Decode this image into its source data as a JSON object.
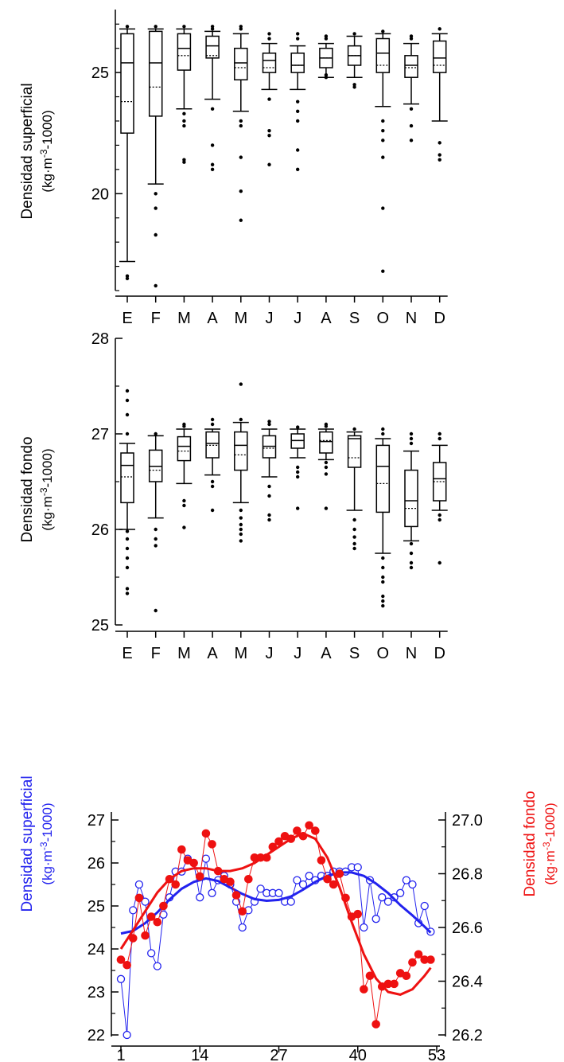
{
  "chart_data": [
    {
      "type": "box",
      "ylabel": "Densidad superficial",
      "ylabel_units": "(kg·m",
      "ylabel_units_sup": "-3",
      "ylabel_units_tail": "-1000)",
      "categories": [
        "E",
        "F",
        "M",
        "A",
        "M",
        "J",
        "J",
        "A",
        "S",
        "O",
        "N",
        "D"
      ],
      "yticks": [
        20,
        25
      ],
      "ylim": [
        16.0,
        27.6
      ],
      "boxes": [
        {
          "q1": 22.5,
          "median": 25.4,
          "q3": 26.6,
          "mean": 23.8,
          "wlo": 17.2,
          "whi": 26.8,
          "out": [
            16.5,
            16.6,
            26.9
          ]
        },
        {
          "q1": 23.2,
          "median": 25.4,
          "q3": 26.7,
          "mean": 24.4,
          "wlo": 20.4,
          "whi": 26.8,
          "out": [
            20.0,
            19.4,
            18.3,
            16.2,
            26.9
          ]
        },
        {
          "q1": 25.1,
          "median": 26.0,
          "q3": 26.6,
          "mean": 25.7,
          "wlo": 23.5,
          "whi": 26.8,
          "out": [
            23.3,
            23.0,
            22.8,
            21.4,
            21.3,
            26.9
          ]
        },
        {
          "q1": 25.6,
          "median": 26.1,
          "q3": 26.5,
          "mean": 25.7,
          "wlo": 23.9,
          "whi": 26.7,
          "out": [
            23.5,
            22.0,
            21.2,
            21.0,
            26.8,
            26.9
          ]
        },
        {
          "q1": 24.7,
          "median": 25.4,
          "q3": 26.0,
          "mean": 25.2,
          "wlo": 23.4,
          "whi": 26.6,
          "out": [
            23.0,
            22.8,
            21.5,
            20.1,
            18.9,
            26.8,
            26.9
          ]
        },
        {
          "q1": 25.0,
          "median": 25.5,
          "q3": 25.8,
          "mean": 25.2,
          "wlo": 24.3,
          "whi": 26.2,
          "out": [
            23.9,
            22.6,
            22.4,
            21.2,
            26.4,
            26.6
          ]
        },
        {
          "q1": 25.0,
          "median": 25.3,
          "q3": 25.8,
          "mean": 25.3,
          "wlo": 24.3,
          "whi": 26.1,
          "out": [
            23.8,
            23.4,
            23.0,
            21.8,
            21.0,
            26.4,
            26.6
          ]
        },
        {
          "q1": 25.2,
          "median": 25.6,
          "q3": 26.0,
          "mean": 25.6,
          "wlo": 24.8,
          "whi": 26.2,
          "out": [
            24.8,
            24.9,
            26.4,
            26.5
          ]
        },
        {
          "q1": 25.3,
          "median": 25.7,
          "q3": 26.1,
          "mean": 25.7,
          "wlo": 24.8,
          "whi": 26.5,
          "out": [
            24.5,
            24.4,
            26.6
          ]
        },
        {
          "q1": 25.0,
          "median": 25.8,
          "q3": 26.4,
          "mean": 25.3,
          "wlo": 23.6,
          "whi": 26.6,
          "out": [
            23.0,
            22.6,
            22.2,
            21.5,
            19.4,
            16.8,
            26.7
          ]
        },
        {
          "q1": 24.8,
          "median": 25.3,
          "q3": 25.7,
          "mean": 25.2,
          "wlo": 23.7,
          "whi": 26.2,
          "out": [
            23.5,
            22.8,
            22.2,
            26.4,
            26.5
          ]
        },
        {
          "q1": 25.0,
          "median": 25.6,
          "q3": 26.3,
          "mean": 25.3,
          "wlo": 23.0,
          "whi": 26.6,
          "out": [
            22.1,
            21.6,
            21.4,
            26.8
          ]
        }
      ]
    },
    {
      "type": "box",
      "ylabel": "Densidad fondo",
      "ylabel_units": "(kg·m",
      "ylabel_units_sup": "-3",
      "ylabel_units_tail": "-1000)",
      "categories": [
        "E",
        "F",
        "M",
        "A",
        "M",
        "J",
        "J",
        "A",
        "S",
        "O",
        "N",
        "D"
      ],
      "yticks": [
        25,
        26,
        27,
        28
      ],
      "ylim": [
        25,
        28
      ],
      "boxes": [
        {
          "q1": 26.28,
          "median": 26.67,
          "q3": 26.8,
          "mean": 26.55,
          "wlo": 26.0,
          "whi": 26.9,
          "out": [
            25.98,
            25.9,
            25.8,
            25.7,
            25.6,
            25.38,
            25.33,
            27.0,
            27.2,
            27.35,
            27.45
          ]
        },
        {
          "q1": 26.5,
          "median": 26.66,
          "q3": 26.83,
          "mean": 26.62,
          "wlo": 26.12,
          "whi": 26.98,
          "out": [
            26.0,
            25.9,
            25.83,
            25.15,
            27.0
          ]
        },
        {
          "q1": 26.72,
          "median": 26.87,
          "q3": 26.97,
          "mean": 26.82,
          "wlo": 26.48,
          "whi": 27.05,
          "out": [
            26.3,
            26.25,
            26.02,
            27.08,
            27.1
          ]
        },
        {
          "q1": 26.75,
          "median": 26.9,
          "q3": 27.02,
          "mean": 26.88,
          "wlo": 26.57,
          "whi": 27.05,
          "out": [
            26.5,
            26.45,
            26.2,
            27.1,
            27.15
          ]
        },
        {
          "q1": 26.62,
          "median": 26.88,
          "q3": 27.02,
          "mean": 26.78,
          "wlo": 26.28,
          "whi": 27.12,
          "out": [
            26.2,
            26.12,
            26.05,
            26.0,
            25.95,
            25.88,
            27.15,
            27.52
          ]
        },
        {
          "q1": 26.75,
          "median": 26.87,
          "q3": 26.98,
          "mean": 26.85,
          "wlo": 26.55,
          "whi": 27.05,
          "out": [
            26.45,
            26.35,
            26.15,
            26.1,
            27.1,
            27.13
          ]
        },
        {
          "q1": 26.85,
          "median": 26.93,
          "q3": 27.0,
          "mean": 26.93,
          "wlo": 26.75,
          "whi": 27.05,
          "out": [
            26.65,
            26.6,
            26.55,
            26.22,
            27.07
          ]
        },
        {
          "q1": 26.8,
          "median": 26.92,
          "q3": 27.02,
          "mean": 26.93,
          "wlo": 26.73,
          "whi": 27.05,
          "out": [
            26.7,
            26.65,
            26.58,
            26.22,
            27.08,
            27.1
          ]
        },
        {
          "q1": 26.65,
          "median": 26.95,
          "q3": 26.98,
          "mean": 26.75,
          "wlo": 26.2,
          "whi": 27.02,
          "out": [
            26.1,
            26.0,
            25.92,
            25.85,
            25.8,
            27.05
          ]
        },
        {
          "q1": 26.18,
          "median": 26.66,
          "q3": 26.88,
          "mean": 26.48,
          "wlo": 25.75,
          "whi": 26.95,
          "out": [
            25.7,
            25.6,
            25.5,
            25.45,
            25.3,
            25.25,
            25.2,
            27.0,
            27.05
          ]
        },
        {
          "q1": 26.03,
          "median": 26.3,
          "q3": 26.62,
          "mean": 26.22,
          "wlo": 25.88,
          "whi": 26.82,
          "out": [
            25.85,
            25.75,
            25.65,
            25.6,
            26.9,
            26.95,
            27.0
          ]
        },
        {
          "q1": 26.3,
          "median": 26.53,
          "q3": 26.7,
          "mean": 26.5,
          "wlo": 26.2,
          "whi": 26.88,
          "out": [
            26.15,
            26.1,
            25.65,
            26.95,
            27.0
          ]
        }
      ]
    },
    {
      "type": "line",
      "ylabel_left": "Densidad superficial",
      "ylabel_right": "Densidad fondo",
      "ylabel_units": "(kg·m",
      "ylabel_units_sup": "-3",
      "ylabel_units_tail": "-1000)",
      "xticks": [
        1,
        14,
        27,
        40,
        53
      ],
      "xlim": [
        1,
        53
      ],
      "ylim_left": [
        22,
        27
      ],
      "yticks_left": [
        22,
        23,
        24,
        25,
        26,
        27
      ],
      "ylim_right": [
        26.2,
        27.0
      ],
      "yticks_right": [
        "26.2",
        "26.4",
        "26.6",
        "26.8",
        "27.0"
      ],
      "colors": {
        "surface": "#2222ee",
        "bottom": "#ee1111"
      },
      "series": [
        {
          "axis": "left",
          "style": "open",
          "x": [
            1,
            2,
            3,
            4,
            5,
            6,
            7,
            8,
            9,
            10,
            11,
            12,
            13,
            14,
            15,
            16,
            17,
            18,
            19,
            20,
            21,
            22,
            23,
            24,
            25,
            26,
            27,
            28,
            29,
            30,
            31,
            32,
            33,
            34,
            35,
            36,
            37,
            38,
            39,
            40,
            41,
            42,
            43,
            44,
            45,
            46,
            47,
            48,
            49,
            50,
            51,
            52
          ],
          "values": [
            23.3,
            22.0,
            24.9,
            25.5,
            25.1,
            23.9,
            23.6,
            24.8,
            25.2,
            25.8,
            25.8,
            26.1,
            26.0,
            25.2,
            26.1,
            25.3,
            25.6,
            25.7,
            25.5,
            25.1,
            24.5,
            24.9,
            25.1,
            25.4,
            25.3,
            25.3,
            25.3,
            25.1,
            25.1,
            25.6,
            25.5,
            25.7,
            25.6,
            25.7,
            25.7,
            25.8,
            25.8,
            25.8,
            25.9,
            25.9,
            24.5,
            25.6,
            24.7,
            25.2,
            25.1,
            25.2,
            25.3,
            25.6,
            25.5,
            24.6,
            25.0,
            24.4
          ]
        },
        {
          "axis": "left",
          "style": "fit",
          "x": [
            1,
            3,
            5,
            7,
            9,
            11,
            13,
            15,
            17,
            19,
            21,
            23,
            25,
            27,
            29,
            31,
            33,
            35,
            37,
            39,
            41,
            43,
            45,
            47,
            49,
            51,
            52
          ],
          "values": [
            24.36,
            24.42,
            24.6,
            24.85,
            25.15,
            25.4,
            25.56,
            25.64,
            25.58,
            25.43,
            25.28,
            25.16,
            25.12,
            25.14,
            25.22,
            25.38,
            25.56,
            25.7,
            25.78,
            25.78,
            25.7,
            25.52,
            25.3,
            25.02,
            24.78,
            24.52,
            24.38
          ]
        },
        {
          "axis": "right",
          "style": "filled",
          "x": [
            1,
            2,
            3,
            4,
            5,
            6,
            7,
            8,
            9,
            10,
            11,
            12,
            13,
            14,
            15,
            16,
            17,
            18,
            19,
            20,
            21,
            22,
            23,
            24,
            25,
            26,
            27,
            28,
            29,
            30,
            31,
            32,
            33,
            34,
            35,
            36,
            37,
            38,
            39,
            40,
            41,
            42,
            43,
            44,
            45,
            46,
            47,
            48,
            49,
            50,
            51,
            52
          ],
          "values": [
            26.48,
            26.46,
            26.56,
            26.71,
            26.57,
            26.64,
            26.62,
            26.68,
            26.78,
            26.76,
            26.89,
            26.85,
            26.84,
            26.79,
            26.95,
            26.91,
            26.81,
            26.78,
            26.77,
            26.72,
            26.66,
            26.78,
            26.86,
            26.86,
            26.86,
            26.9,
            26.92,
            26.94,
            26.93,
            26.96,
            26.94,
            26.98,
            26.96,
            26.85,
            26.78,
            26.76,
            26.8,
            26.71,
            26.64,
            26.65,
            26.37,
            26.42,
            26.24,
            26.38,
            26.39,
            26.39,
            26.43,
            26.42,
            26.47,
            26.5,
            26.48,
            26.48
          ]
        },
        {
          "axis": "right",
          "style": "fit",
          "x": [
            1,
            3,
            5,
            7,
            9,
            11,
            13,
            15,
            17,
            19,
            21,
            23,
            25,
            27,
            29,
            31,
            33,
            35,
            37,
            39,
            41,
            43,
            45,
            47,
            48,
            49,
            51,
            52
          ],
          "values": [
            26.52,
            26.59,
            26.66,
            26.73,
            26.78,
            26.81,
            26.82,
            26.82,
            26.81,
            26.81,
            26.82,
            26.84,
            26.87,
            26.9,
            26.93,
            26.95,
            26.93,
            26.86,
            26.75,
            26.62,
            26.5,
            26.41,
            26.36,
            26.35,
            26.36,
            26.37,
            26.42,
            26.45
          ]
        }
      ]
    }
  ]
}
